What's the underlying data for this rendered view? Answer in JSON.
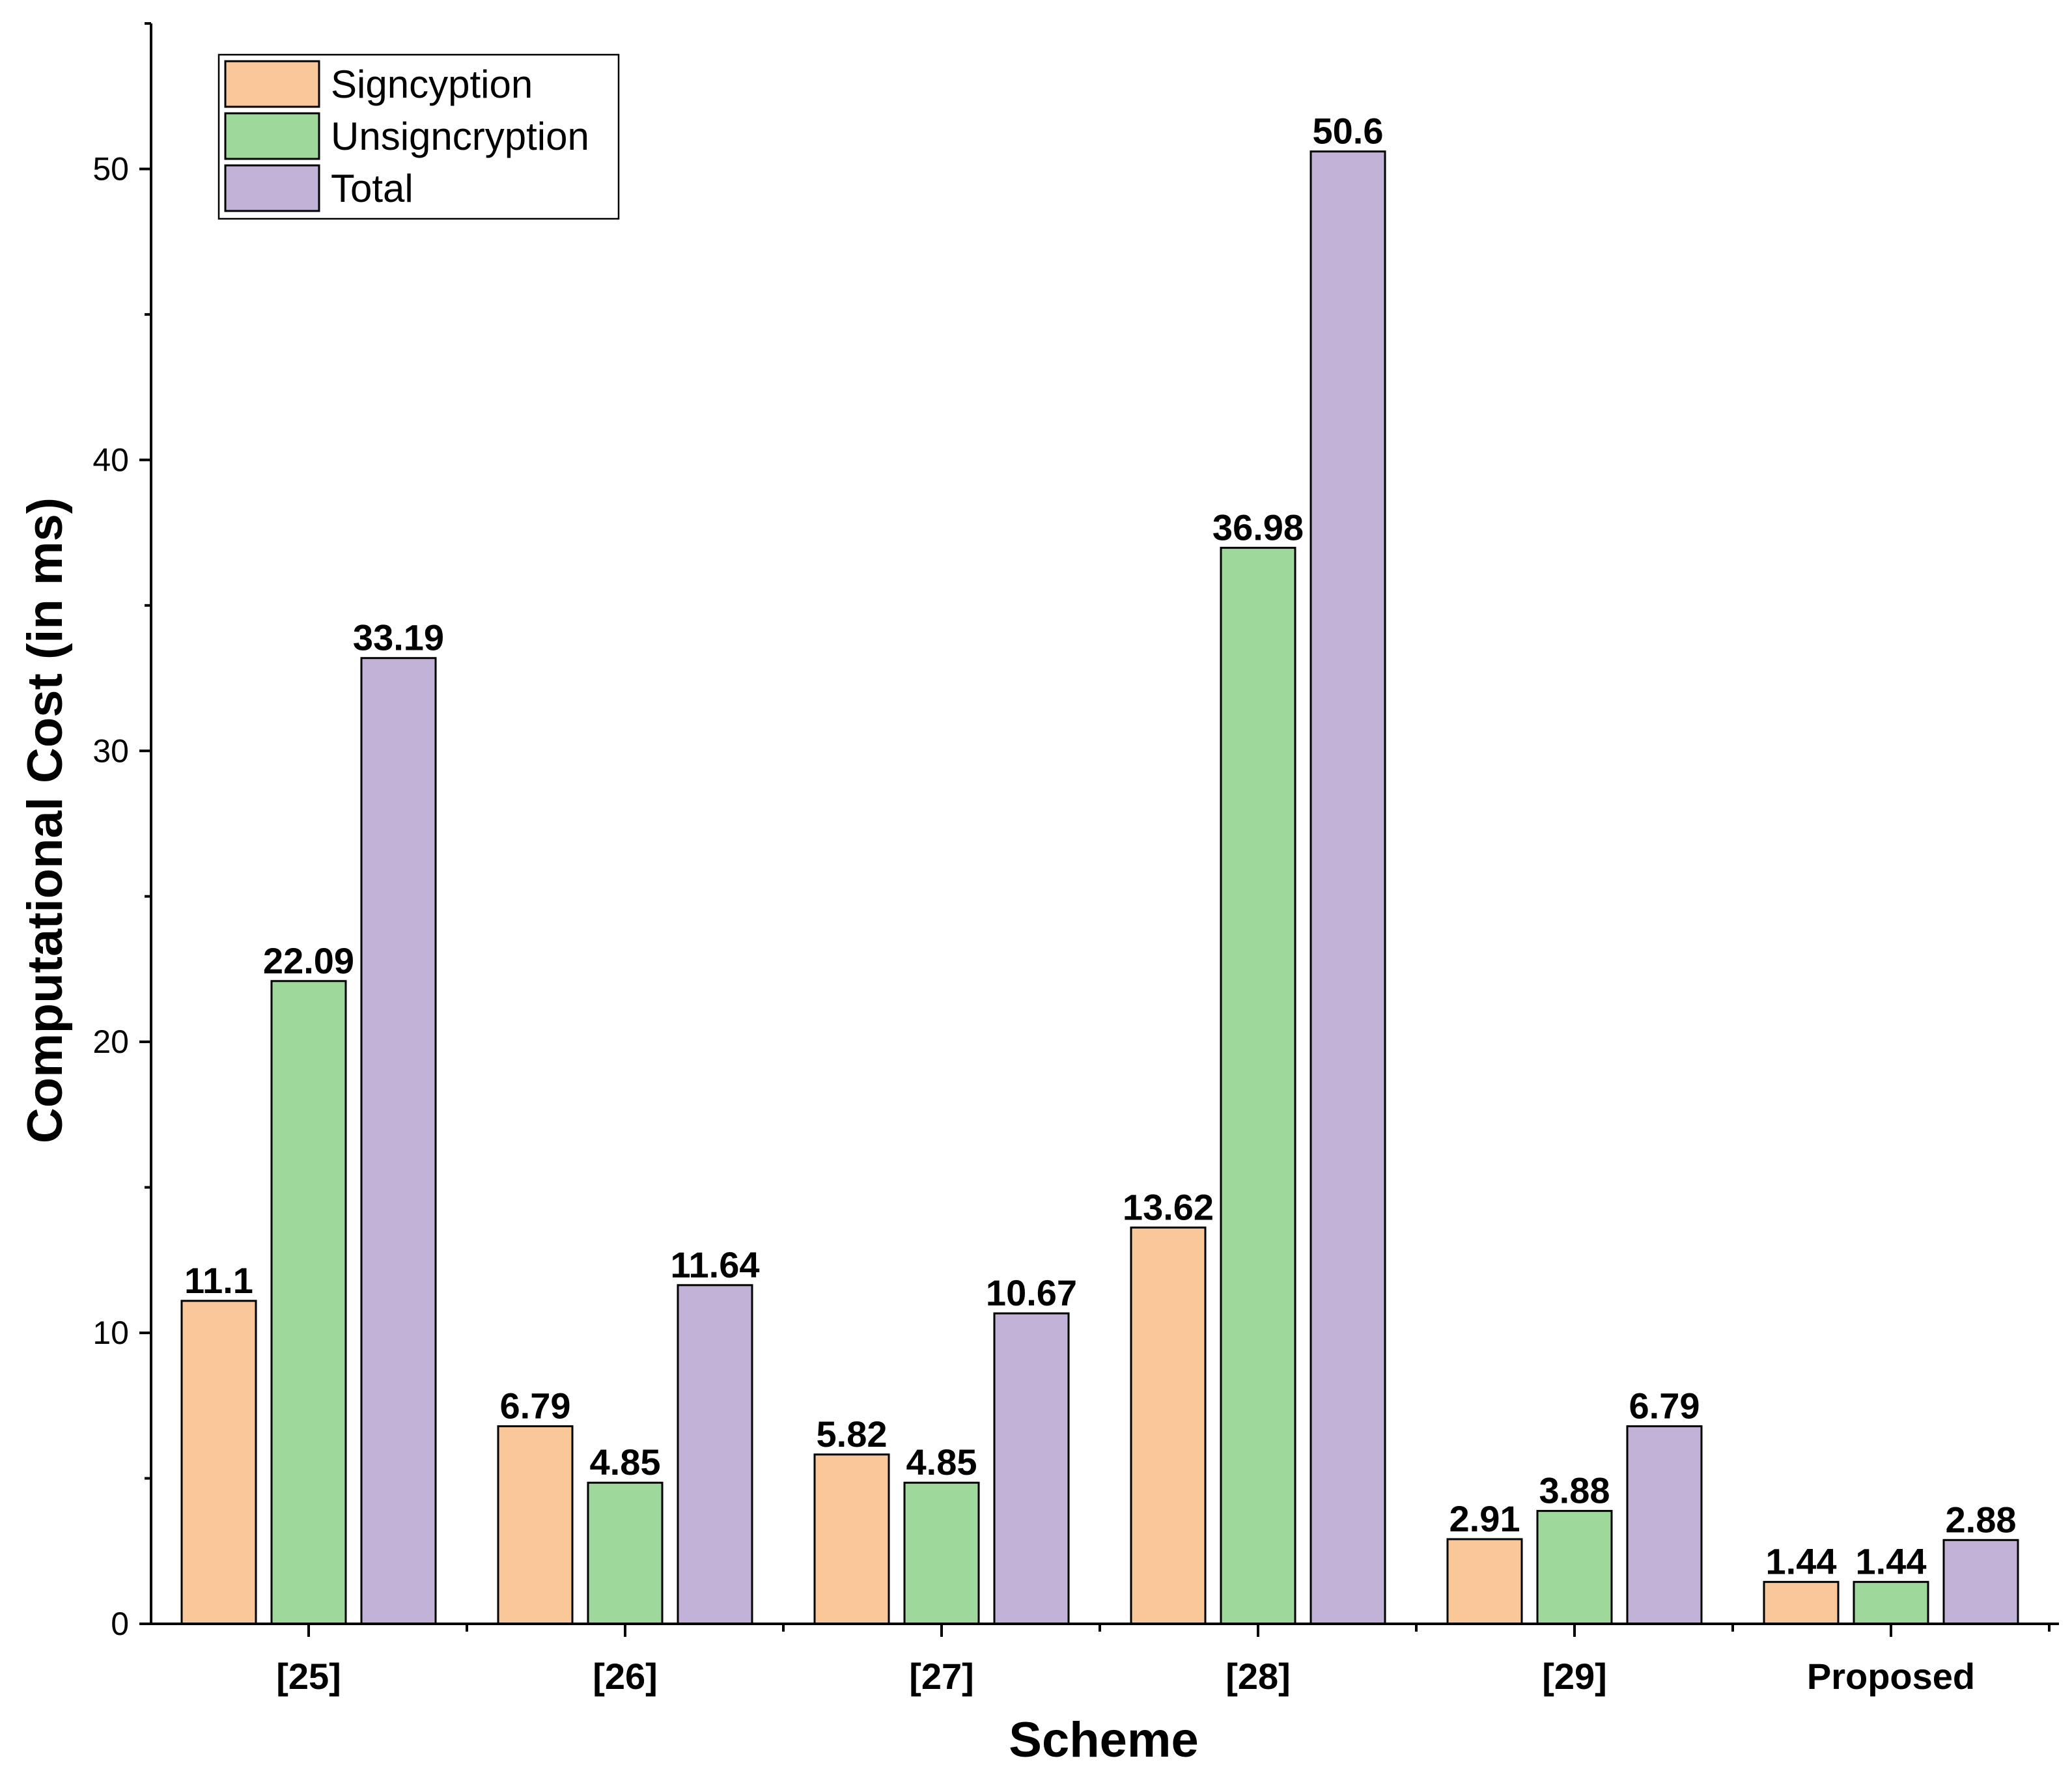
{
  "chart_data": {
    "type": "bar",
    "title": "",
    "xlabel": "Scheme",
    "ylabel": "Computational Cost (in ms)",
    "ylim": [
      0,
      55
    ],
    "yticks": [
      0,
      10,
      20,
      30,
      40,
      50
    ],
    "grid": false,
    "legend_position": "top-left",
    "categories": [
      "[25]",
      "[26]",
      "[27]",
      "[28]",
      "[29]",
      "Proposed"
    ],
    "series": [
      {
        "name": "Signcyption",
        "color": "#FAC898",
        "values": [
          11.1,
          6.79,
          5.82,
          13.62,
          2.91,
          1.44
        ]
      },
      {
        "name": "Unsigncryption",
        "color": "#9ED89B",
        "values": [
          22.09,
          4.85,
          4.85,
          36.98,
          3.88,
          1.44
        ]
      },
      {
        "name": "Total",
        "color": "#C2B2D8",
        "values": [
          33.19,
          11.64,
          10.67,
          50.6,
          6.79,
          2.88
        ]
      }
    ],
    "data_labels": [
      [
        "11.1",
        "6.79",
        "5.82",
        "13.62",
        "2.91",
        "1.44"
      ],
      [
        "22.09",
        "4.85",
        "4.85",
        "36.98",
        "3.88",
        "1.44"
      ],
      [
        "33.19",
        "11.64",
        "10.67",
        "50.6",
        "6.79",
        "2.88"
      ]
    ]
  }
}
